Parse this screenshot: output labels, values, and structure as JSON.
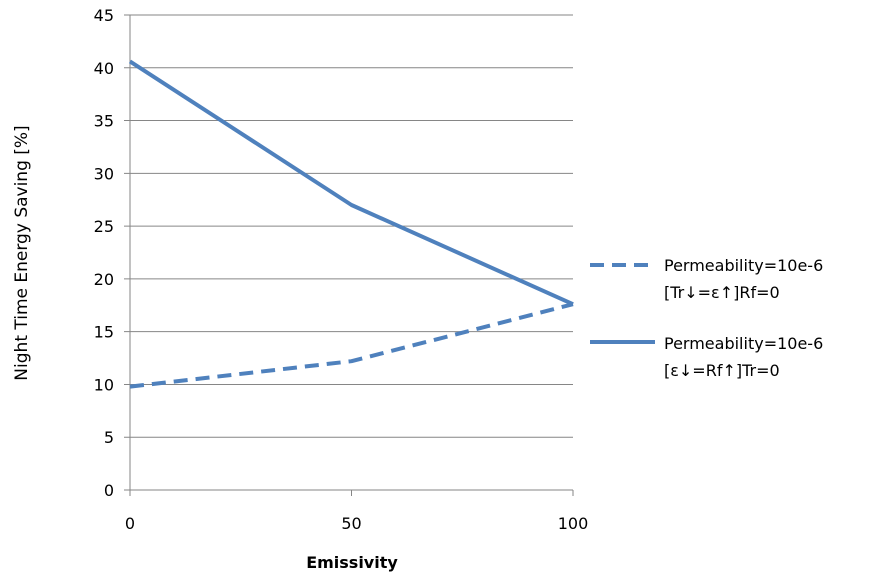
{
  "chart_data": {
    "type": "line",
    "xlabel": "Emissivity",
    "ylabel": "Night Time Energy Saving [%]",
    "xlim": [
      0,
      100
    ],
    "ylim": [
      0,
      45
    ],
    "x_ticks": [
      0,
      50,
      100
    ],
    "y_ticks": [
      0,
      5,
      10,
      15,
      20,
      25,
      30,
      35,
      40,
      45
    ],
    "grid": true,
    "legend_position": "right",
    "series": [
      {
        "name_line1": "Permeability=10e-6",
        "name_line2": "[Tr↓=ε↑]Rf=0",
        "style": "dashed",
        "color": "#4F81BD",
        "x": [
          0,
          50,
          100
        ],
        "values": [
          9.8,
          12.2,
          17.6
        ]
      },
      {
        "name_line1": "Permeability=10e-6",
        "name_line2": "[ε↓=Rf↑]Tr=0",
        "style": "solid",
        "color": "#4F81BD",
        "x": [
          0,
          50,
          100
        ],
        "values": [
          40.6,
          27.0,
          17.6
        ]
      }
    ]
  }
}
